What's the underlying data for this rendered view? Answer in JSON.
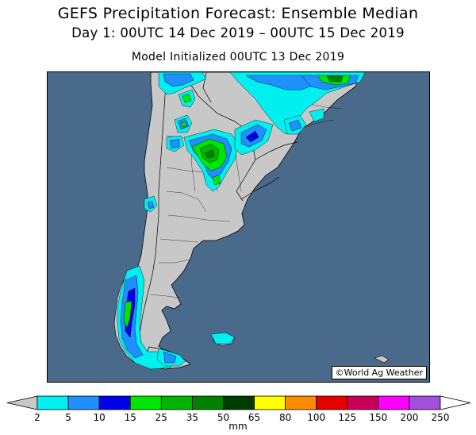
{
  "header": {
    "title": "GEFS Precipitation Forecast: Ensemble Median",
    "period": "Day 1: 00UTC 14 Dec 2019 – 00UTC 15 Dec 2019",
    "init": "Model Initialized 00UTC 13 Dec 2019"
  },
  "map": {
    "credit": "©World Ag Weather",
    "ocean_color": "#4a6a8c",
    "land_color": "#c8c8c8"
  },
  "legend": {
    "units": "mm",
    "thresholds": [
      "2",
      "5",
      "10",
      "15",
      "25",
      "35",
      "50",
      "65",
      "80",
      "100",
      "125",
      "150",
      "200",
      "250"
    ],
    "colors": [
      "#00f0f0",
      "#1e90ff",
      "#0000e6",
      "#00e600",
      "#00b400",
      "#008200",
      "#003c00",
      "#ffff00",
      "#ff8c00",
      "#e60000",
      "#c8005a",
      "#ff00ff",
      "#a050dc"
    ],
    "under_color": "#c8c8c8",
    "over_color": "#ffffff"
  }
}
